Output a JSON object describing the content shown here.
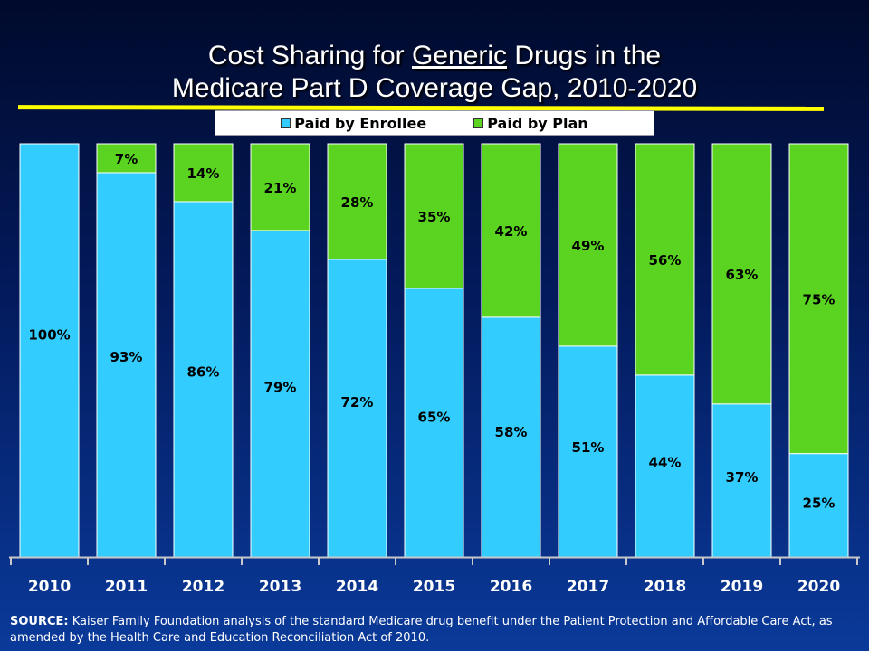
{
  "title": {
    "line1_prefix": "Cost Sharing for ",
    "line1_underlined": "Generic",
    "line1_suffix": " Drugs in the",
    "line2": "Medicare Part D Coverage Gap, 2010-2020"
  },
  "colors": {
    "enrollee": "#33ccff",
    "plan": "#5ad420",
    "accent_rule": "#ffff00",
    "axis": "#c8c8c8"
  },
  "source": {
    "label": "SOURCE:",
    "text": " Kaiser Family Foundation analysis of the standard Medicare drug benefit under  the Patient Protection and Affordable Care Act, as amended by the Health Care and Education Reconciliation Act of 2010."
  },
  "chart_data": {
    "type": "bar",
    "stacked": true,
    "percent_stacked": true,
    "categories": [
      "2010",
      "2011",
      "2012",
      "2013",
      "2014",
      "2015",
      "2016",
      "2017",
      "2018",
      "2019",
      "2020"
    ],
    "series": [
      {
        "name": "Paid by Enrollee",
        "color": "#33ccff",
        "values": [
          100,
          93,
          86,
          79,
          72,
          65,
          58,
          51,
          44,
          37,
          25
        ]
      },
      {
        "name": "Paid by Plan",
        "color": "#5ad420",
        "values": [
          0,
          7,
          14,
          21,
          28,
          35,
          42,
          49,
          56,
          63,
          75
        ]
      }
    ],
    "data_labels": {
      "enrollee": [
        "100%",
        "93%",
        "86%",
        "79%",
        "72%",
        "65%",
        "58%",
        "51%",
        "44%",
        "37%",
        "25%"
      ],
      "plan": [
        "",
        "7%",
        "14%",
        "21%",
        "28%",
        "35%",
        "42%",
        "49%",
        "56%",
        "63%",
        "75%"
      ]
    },
    "ylim": [
      0,
      100
    ],
    "legend_position": "top",
    "grid": false,
    "xlabel": "",
    "ylabel": ""
  }
}
